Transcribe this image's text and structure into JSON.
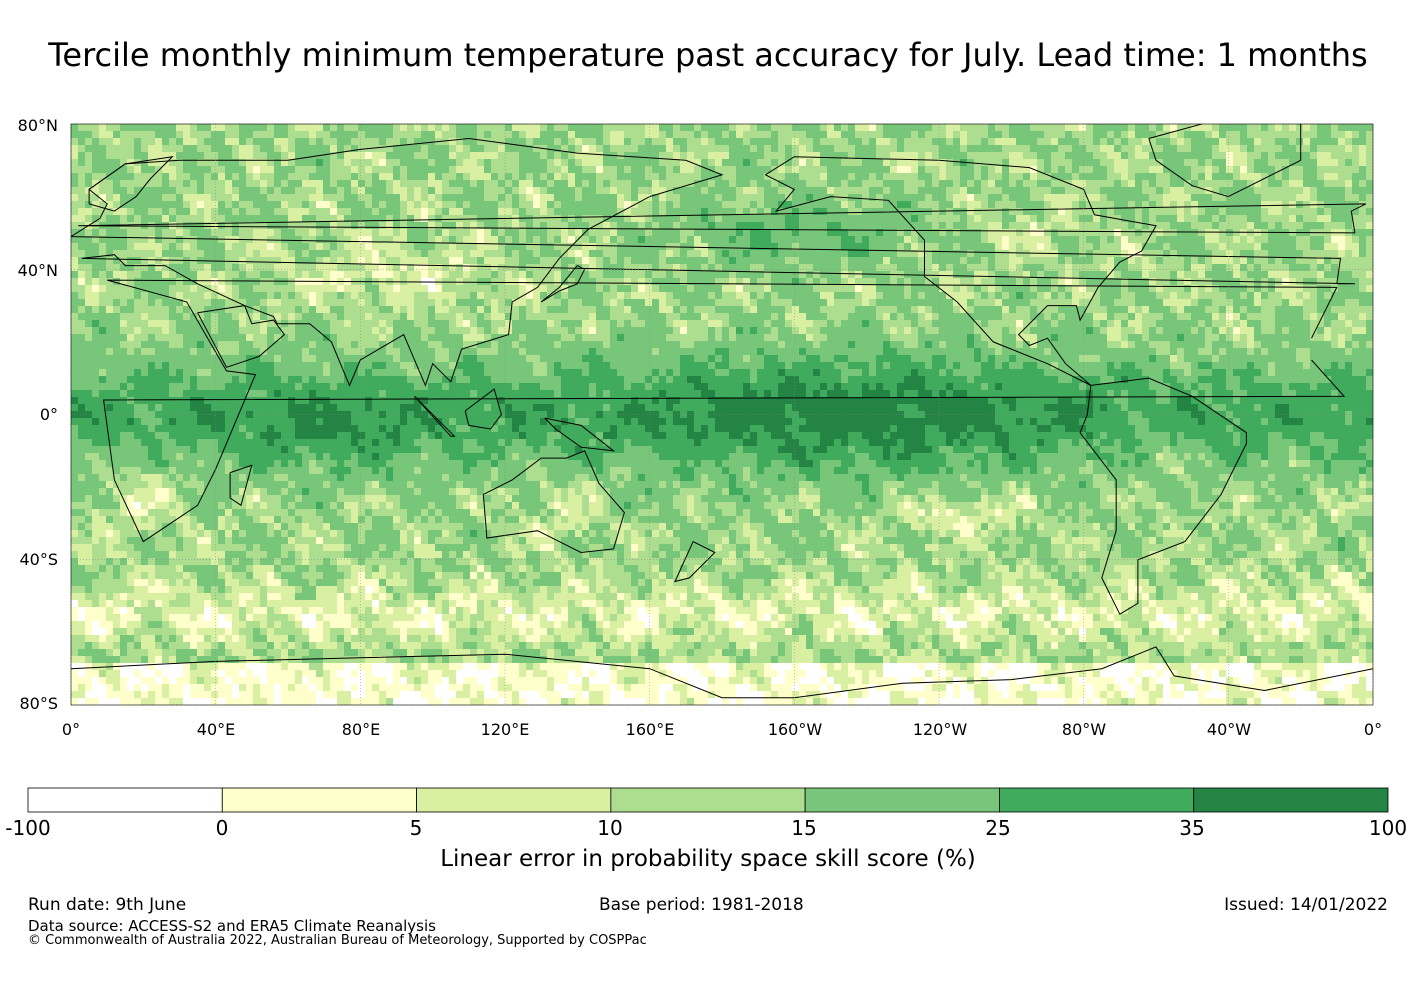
{
  "title": "Tercile monthly minimum temperature past accuracy for July. Lead time: 1 months",
  "map": {
    "lat_labels": [
      "80°N",
      "40°N",
      "0°",
      "40°S",
      "80°S"
    ],
    "lat_values": [
      80,
      40,
      0,
      -40,
      -80
    ],
    "lon_labels": [
      "0°",
      "40°E",
      "80°E",
      "120°E",
      "160°E",
      "160°W",
      "120°W",
      "80°W",
      "40°W",
      "0°"
    ],
    "lon_values": [
      0,
      40,
      80,
      120,
      160,
      200,
      240,
      280,
      320,
      360
    ],
    "lon_range": [
      0,
      360
    ],
    "lat_range": [
      -80,
      80
    ],
    "gridlines": true,
    "projection": "equirectangular, centred on 180°"
  },
  "colorbar": {
    "title": "Linear error in probability space skill score (%)",
    "bounds": [
      "-100",
      "0",
      "5",
      "10",
      "15",
      "25",
      "35",
      "100"
    ],
    "colors": [
      "#ffffff",
      "#ffffcc",
      "#d9f0a3",
      "#addd8e",
      "#78c679",
      "#41ab5d",
      "#238443"
    ]
  },
  "footer": {
    "run_date": "Run date: 9th June",
    "base_period": "Base period: 1981-2018",
    "issued": "Issued: 14/01/2022",
    "data_source": "Data source: ACCESS-S2 and ERA5 Climate Reanalysis",
    "copyright": "© Commonwealth of Australia 2022, Australian Bureau of Meteorology, Supported by COSPPac"
  }
}
